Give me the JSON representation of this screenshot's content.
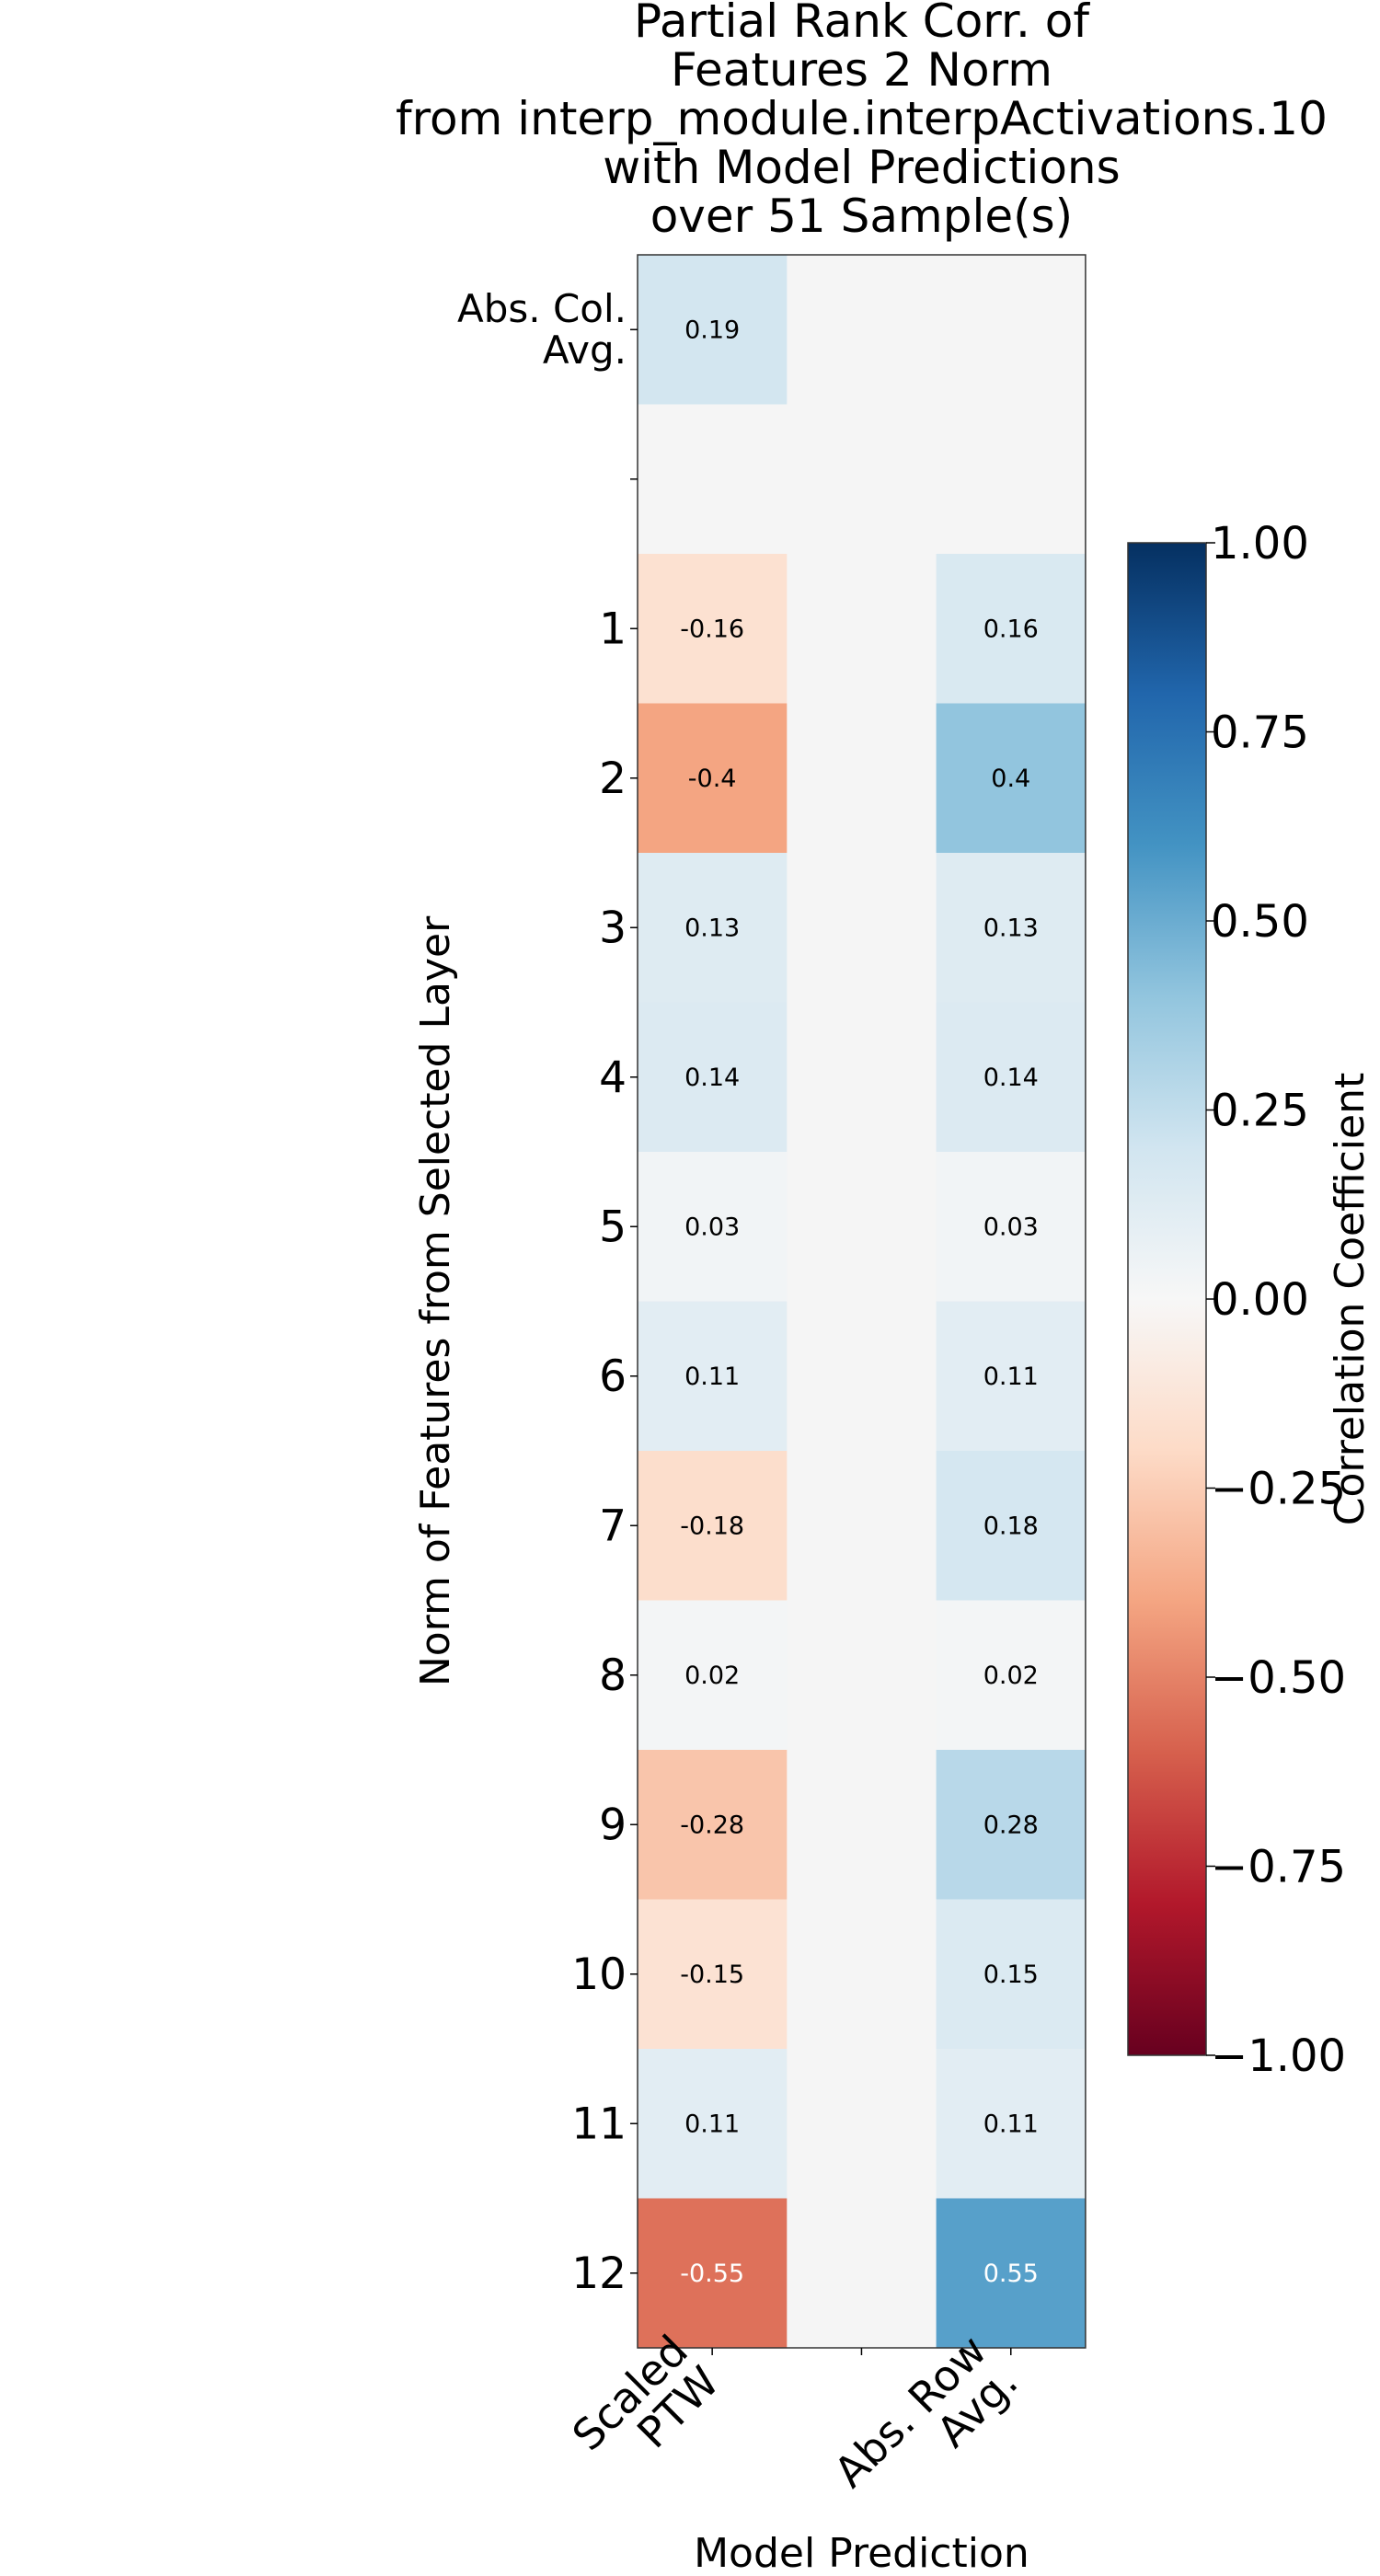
{
  "chart_data": {
    "type": "heatmap",
    "title_lines": [
      "Partial Rank Corr. of",
      "Features 2 Norm",
      "from interp_module.interpActivations.10",
      "with Model Predictions",
      "over 51  Sample(s)"
    ],
    "xlabel": "Model Prediction",
    "ylabel": "Norm of Features from Selected Layer",
    "x_categories": [
      [
        "Scaled",
        "PTW"
      ],
      [],
      [
        "Abs. Row",
        "Avg."
      ]
    ],
    "rows": [
      {
        "label": [
          "Abs. Col.",
          "Avg."
        ],
        "values": [
          0.19,
          null,
          null
        ],
        "labels": [
          "0.19",
          "",
          ""
        ]
      },
      {
        "label": [],
        "values": [
          null,
          null,
          null
        ],
        "labels": [
          "",
          "",
          ""
        ]
      },
      {
        "label": [
          "1"
        ],
        "values": [
          -0.16,
          null,
          0.16
        ],
        "labels": [
          "-0.16",
          "",
          "0.16"
        ]
      },
      {
        "label": [
          "2"
        ],
        "values": [
          -0.4,
          null,
          0.4
        ],
        "labels": [
          "-0.4",
          "",
          "0.4"
        ]
      },
      {
        "label": [
          "3"
        ],
        "values": [
          0.13,
          null,
          0.13
        ],
        "labels": [
          "0.13",
          "",
          "0.13"
        ]
      },
      {
        "label": [
          "4"
        ],
        "values": [
          0.14,
          null,
          0.14
        ],
        "labels": [
          "0.14",
          "",
          "0.14"
        ]
      },
      {
        "label": [
          "5"
        ],
        "values": [
          0.03,
          null,
          0.03
        ],
        "labels": [
          "0.03",
          "",
          "0.03"
        ]
      },
      {
        "label": [
          "6"
        ],
        "values": [
          0.11,
          null,
          0.11
        ],
        "labels": [
          "0.11",
          "",
          "0.11"
        ]
      },
      {
        "label": [
          "7"
        ],
        "values": [
          -0.18,
          null,
          0.18
        ],
        "labels": [
          "-0.18",
          "",
          "0.18"
        ]
      },
      {
        "label": [
          "8"
        ],
        "values": [
          0.02,
          null,
          0.02
        ],
        "labels": [
          "0.02",
          "",
          "0.02"
        ]
      },
      {
        "label": [
          "9"
        ],
        "values": [
          -0.28,
          null,
          0.28
        ],
        "labels": [
          "-0.28",
          "",
          "0.28"
        ]
      },
      {
        "label": [
          "10"
        ],
        "values": [
          -0.15,
          null,
          0.15
        ],
        "labels": [
          "-0.15",
          "",
          "0.15"
        ]
      },
      {
        "label": [
          "11"
        ],
        "values": [
          0.11,
          null,
          0.11
        ],
        "labels": [
          "0.11",
          "",
          "0.11"
        ]
      },
      {
        "label": [
          "12"
        ],
        "values": [
          -0.55,
          null,
          0.55
        ],
        "labels": [
          "-0.55",
          "",
          "0.55"
        ]
      }
    ],
    "empty_cell_color": "#f5f5f5",
    "colorbar": {
      "label": "Correlation Coefficient",
      "range": [
        -1,
        1
      ],
      "ticks": [
        1.0,
        0.75,
        0.5,
        0.25,
        0.0,
        -0.25,
        -0.5,
        -0.75,
        -1.0
      ],
      "tick_labels": [
        "1.00",
        "0.75",
        "0.50",
        "0.25",
        "0.00",
        "−0.25",
        "−0.50",
        "−0.75",
        "−1.00"
      ],
      "colormap": "RdBu",
      "stops": [
        "#67001f",
        "#b2182b",
        "#d6604d",
        "#f4a582",
        "#fddbc7",
        "#f7f7f7",
        "#d1e5f0",
        "#92c5de",
        "#4393c3",
        "#2166ac",
        "#053061"
      ]
    }
  }
}
